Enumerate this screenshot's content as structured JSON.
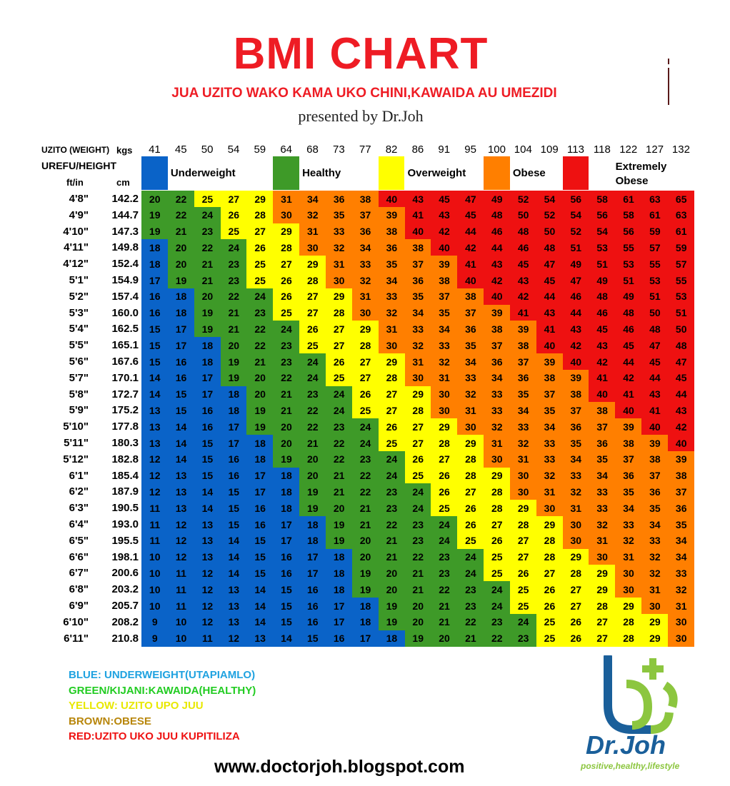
{
  "title": "BMI CHART",
  "subtitle": "JUA UZITO WAKO KAMA UKO CHINI,KAWAIDA AU UMEZIDI",
  "presented_by": "presented by Dr.Joh",
  "header": {
    "weight_label": "UZITO (WEIGHT)",
    "kgs_label": "kgs",
    "height_label": "UREFU/HEIGHT",
    "ftin_label": "ft/in",
    "cm_label": "cm"
  },
  "colors": {
    "underweight": "#0a63c8",
    "healthy": "#3e9a28",
    "overweight": "#ffff00",
    "obese": "#ff7f00",
    "extremely_obese": "#ee1111"
  },
  "chart_data": {
    "type": "table",
    "weights_kg": [
      "41",
      "45",
      "50",
      "54",
      "59",
      "64",
      "68",
      "73",
      "77",
      "82",
      "86",
      "91",
      "95",
      "100",
      "104",
      "109",
      "113",
      "118",
      "122",
      "127",
      "132"
    ],
    "categories": [
      {
        "name": "Underweight",
        "color_key": "underweight"
      },
      {
        "name": "Healthy",
        "color_key": "healthy"
      },
      {
        "name": "Overweight",
        "color_key": "overweight"
      },
      {
        "name": "Obese",
        "color_key": "obese"
      },
      {
        "name": "Extremely Obese",
        "color_key": "extremely_obese"
      }
    ],
    "thresholds": [
      18.5,
      25,
      30,
      40
    ],
    "rows": [
      {
        "ft": "4'8\"",
        "cm": "142.2",
        "bmi": [
          20,
          22,
          25,
          27,
          29,
          31,
          34,
          36,
          38,
          40,
          43,
          45,
          47,
          49,
          52,
          54,
          56,
          58,
          61,
          63,
          65
        ]
      },
      {
        "ft": "4'9\"",
        "cm": "144.7",
        "bmi": [
          19,
          22,
          24,
          26,
          28,
          30,
          32,
          35,
          37,
          39,
          41,
          43,
          45,
          48,
          50,
          52,
          54,
          56,
          58,
          61,
          63
        ]
      },
      {
        "ft": "4'10\"",
        "cm": "147.3",
        "bmi": [
          19,
          21,
          23,
          25,
          27,
          29,
          31,
          33,
          36,
          38,
          40,
          42,
          44,
          46,
          48,
          50,
          52,
          54,
          56,
          59,
          61
        ]
      },
      {
        "ft": "4'11\"",
        "cm": "149.8",
        "bmi": [
          18,
          20,
          22,
          24,
          26,
          28,
          30,
          32,
          34,
          36,
          38,
          40,
          42,
          44,
          46,
          48,
          51,
          53,
          55,
          57,
          59
        ]
      },
      {
        "ft": "4'12\"",
        "cm": "152.4",
        "bmi": [
          18,
          20,
          21,
          23,
          25,
          27,
          29,
          31,
          33,
          35,
          37,
          39,
          41,
          43,
          45,
          47,
          49,
          51,
          53,
          55,
          57
        ]
      },
      {
        "ft": "5'1\"",
        "cm": "154.9",
        "bmi": [
          17,
          19,
          21,
          23,
          25,
          26,
          28,
          30,
          32,
          34,
          36,
          38,
          40,
          42,
          43,
          45,
          47,
          49,
          51,
          53,
          55
        ]
      },
      {
        "ft": "5'2\"",
        "cm": "157.4",
        "bmi": [
          16,
          18,
          20,
          22,
          24,
          26,
          27,
          29,
          31,
          33,
          35,
          37,
          38,
          40,
          42,
          44,
          46,
          48,
          49,
          51,
          53
        ]
      },
      {
        "ft": "5'3\"",
        "cm": "160.0",
        "bmi": [
          16,
          18,
          19,
          21,
          23,
          25,
          27,
          28,
          30,
          32,
          34,
          35,
          37,
          39,
          41,
          43,
          44,
          46,
          48,
          50,
          51
        ]
      },
      {
        "ft": "5'4\"",
        "cm": "162.5",
        "bmi": [
          15,
          17,
          19,
          21,
          22,
          24,
          26,
          27,
          29,
          31,
          33,
          34,
          36,
          38,
          39,
          41,
          43,
          45,
          46,
          48,
          50
        ]
      },
      {
        "ft": "5'5\"",
        "cm": "165.1",
        "bmi": [
          15,
          17,
          18,
          20,
          22,
          23,
          25,
          27,
          28,
          30,
          32,
          33,
          35,
          37,
          38,
          40,
          42,
          43,
          45,
          47,
          48
        ]
      },
      {
        "ft": "5'6\"",
        "cm": "167.6",
        "bmi": [
          15,
          16,
          18,
          19,
          21,
          23,
          24,
          26,
          27,
          29,
          31,
          32,
          34,
          36,
          37,
          39,
          40,
          42,
          44,
          45,
          47
        ]
      },
      {
        "ft": "5'7\"",
        "cm": "170.1",
        "bmi": [
          14,
          16,
          17,
          19,
          20,
          22,
          24,
          25,
          27,
          28,
          30,
          31,
          33,
          34,
          36,
          38,
          39,
          41,
          42,
          44,
          45
        ]
      },
      {
        "ft": "5'8\"",
        "cm": "172.7",
        "bmi": [
          14,
          15,
          17,
          18,
          20,
          21,
          23,
          24,
          26,
          27,
          29,
          30,
          32,
          33,
          35,
          37,
          38,
          40,
          41,
          43,
          44
        ]
      },
      {
        "ft": "5'9\"",
        "cm": "175.2",
        "bmi": [
          13,
          15,
          16,
          18,
          19,
          21,
          22,
          24,
          25,
          27,
          28,
          30,
          31,
          33,
          34,
          35,
          37,
          38,
          40,
          41,
          43
        ]
      },
      {
        "ft": "5'10\"",
        "cm": "177.8",
        "bmi": [
          13,
          14,
          16,
          17,
          19,
          20,
          22,
          23,
          24,
          26,
          27,
          29,
          30,
          32,
          33,
          34,
          36,
          37,
          39,
          40,
          42
        ]
      },
      {
        "ft": "5'11\"",
        "cm": "180.3",
        "bmi": [
          13,
          14,
          15,
          17,
          18,
          20,
          21,
          22,
          24,
          25,
          27,
          28,
          29,
          31,
          32,
          33,
          35,
          36,
          38,
          39,
          40
        ]
      },
      {
        "ft": "5'12\"",
        "cm": "182.8",
        "bmi": [
          12,
          14,
          15,
          16,
          18,
          19,
          20,
          22,
          23,
          24,
          26,
          27,
          28,
          30,
          31,
          33,
          34,
          35,
          37,
          38,
          39
        ]
      },
      {
        "ft": "6'1\"",
        "cm": "185.4",
        "bmi": [
          12,
          13,
          15,
          16,
          17,
          18,
          20,
          21,
          22,
          24,
          25,
          26,
          28,
          29,
          30,
          32,
          33,
          34,
          36,
          37,
          38
        ]
      },
      {
        "ft": "6'2\"",
        "cm": "187.9",
        "bmi": [
          12,
          13,
          14,
          15,
          17,
          18,
          19,
          21,
          22,
          23,
          24,
          26,
          27,
          28,
          30,
          31,
          32,
          33,
          35,
          36,
          37
        ]
      },
      {
        "ft": "6'3\"",
        "cm": "190.5",
        "bmi": [
          11,
          13,
          14,
          15,
          16,
          18,
          19,
          20,
          21,
          23,
          24,
          25,
          26,
          28,
          29,
          30,
          31,
          33,
          34,
          35,
          36
        ]
      },
      {
        "ft": "6'4\"",
        "cm": "193.0",
        "bmi": [
          11,
          12,
          13,
          15,
          16,
          17,
          18,
          19,
          21,
          22,
          23,
          24,
          26,
          27,
          28,
          29,
          30,
          32,
          33,
          34,
          35
        ]
      },
      {
        "ft": "6'5\"",
        "cm": "195.5",
        "bmi": [
          11,
          12,
          13,
          14,
          15,
          17,
          18,
          19,
          20,
          21,
          23,
          24,
          25,
          26,
          27,
          28,
          30,
          31,
          32,
          33,
          34
        ]
      },
      {
        "ft": "6'6\"",
        "cm": "198.1",
        "bmi": [
          10,
          12,
          13,
          14,
          15,
          16,
          17,
          18,
          20,
          21,
          22,
          23,
          24,
          25,
          27,
          28,
          29,
          30,
          31,
          32,
          34
        ]
      },
      {
        "ft": "6'7\"",
        "cm": "200.6",
        "bmi": [
          10,
          11,
          12,
          14,
          15,
          16,
          17,
          18,
          19,
          20,
          21,
          23,
          24,
          25,
          26,
          27,
          28,
          29,
          30,
          32,
          33
        ]
      },
      {
        "ft": "6'8\"",
        "cm": "203.2",
        "bmi": [
          10,
          11,
          12,
          13,
          14,
          15,
          16,
          18,
          19,
          20,
          21,
          22,
          23,
          24,
          25,
          26,
          27,
          29,
          30,
          31,
          32
        ]
      },
      {
        "ft": "6'9\"",
        "cm": "205.7",
        "bmi": [
          10,
          11,
          12,
          13,
          14,
          15,
          16,
          17,
          18,
          19,
          20,
          21,
          23,
          24,
          25,
          26,
          27,
          28,
          29,
          30,
          31
        ]
      },
      {
        "ft": "6'10\"",
        "cm": "208.2",
        "bmi": [
          9,
          10,
          12,
          13,
          14,
          15,
          16,
          17,
          18,
          19,
          20,
          21,
          22,
          23,
          24,
          25,
          26,
          27,
          28,
          29,
          30
        ]
      },
      {
        "ft": "6'11\"",
        "cm": "210.8",
        "bmi": [
          9,
          10,
          11,
          12,
          13,
          14,
          15,
          16,
          17,
          18,
          19,
          20,
          21,
          22,
          23,
          25,
          26,
          27,
          28,
          29,
          30
        ]
      }
    ]
  },
  "key": [
    {
      "text": "BLUE: UNDERWEIGHT(UTAPIAMLO)",
      "color": "#1fa2e0"
    },
    {
      "text": "GREEN/KIJANI:KAWAIDA(HEALTHY)",
      "color": "#22cc22"
    },
    {
      "text": "YELLOW: UZITO UPO JUU",
      "color": "#e8e800"
    },
    {
      "text": "BROWN:OBESE",
      "color": "#b8860b"
    },
    {
      "text": "RED:UZITO UKO JUU KUPITILIZA",
      "color": "#ee1111"
    }
  ],
  "website": "www.doctorjoh.blogspot.com",
  "logo": {
    "name": "Dr.Joh",
    "tagline": "positive,healthy,lifestyle",
    "color_blue": "#1a5f9a",
    "color_green": "#8cc63f"
  }
}
